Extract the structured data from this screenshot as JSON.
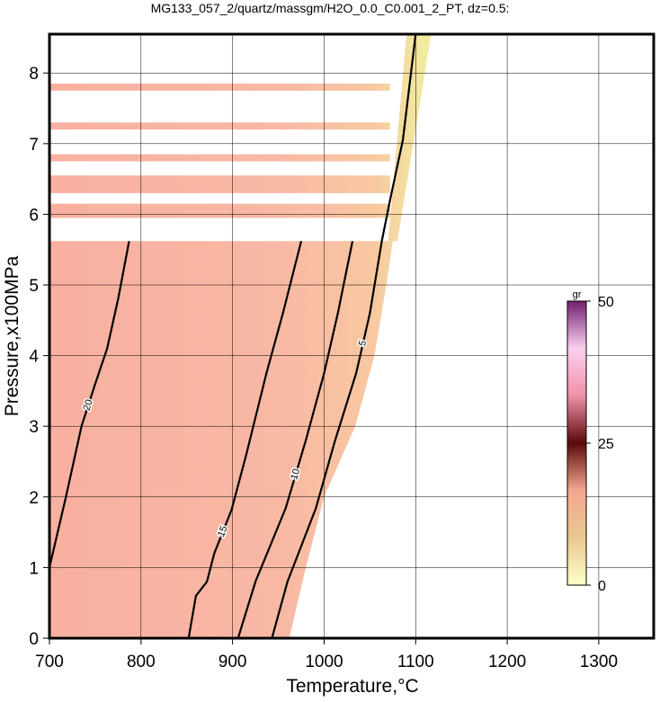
{
  "chart_data": {
    "type": "contour",
    "title": "MG133_057_2/quartz/massgm/H2O_0.0_C0.001_2_PT, dz=0.5:",
    "x_label": "Temperature,°C",
    "y_label": "Pressure,x100MPa",
    "xlim": [
      700,
      1360
    ],
    "ylim": [
      0,
      8.55
    ],
    "xticks": [
      700,
      800,
      900,
      1000,
      1100,
      1200,
      1300
    ],
    "yticks": [
      0,
      1,
      2,
      3,
      4,
      5,
      6,
      7,
      8
    ],
    "grid": true,
    "field_polygons": [
      {
        "x": [
          700,
          962,
          980,
          1000,
          1034,
          1055,
          1068,
          1075,
          700
        ],
        "y": [
          0,
          0,
          1,
          2,
          3,
          4,
          5,
          5.62,
          5.62
        ]
      },
      {
        "x": [
          1070,
          1080,
          1117,
          1090
        ],
        "y": [
          5.62,
          5.62,
          8.55,
          8.55
        ]
      },
      {
        "x": [
          700,
          1072,
          1072,
          700
        ],
        "y": [
          5.95,
          5.95,
          6.15,
          6.15
        ]
      },
      {
        "x": [
          700,
          1072,
          1072,
          700
        ],
        "y": [
          6.3,
          6.3,
          6.55,
          6.55
        ]
      },
      {
        "x": [
          700,
          1072,
          1072,
          700
        ],
        "y": [
          6.75,
          6.75,
          6.85,
          6.85
        ]
      },
      {
        "x": [
          700,
          1072,
          1072,
          700
        ],
        "y": [
          7.2,
          7.2,
          7.3,
          7.3
        ]
      },
      {
        "x": [
          700,
          1072,
          1072,
          700
        ],
        "y": [
          7.75,
          7.75,
          7.85,
          7.85
        ]
      }
    ],
    "contours": [
      {
        "level": 20,
        "x": [
          700,
          718,
          735,
          750,
          763,
          775,
          787
        ],
        "y": [
          1,
          2,
          3,
          3.6,
          4.1,
          4.8,
          5.62
        ]
      },
      {
        "level": 15,
        "x": [
          852,
          860,
          872,
          880,
          899,
          915,
          937,
          955,
          975
        ],
        "y": [
          0,
          0.6,
          0.8,
          1.2,
          1.82,
          2.6,
          3.75,
          4.6,
          5.62
        ]
      },
      {
        "level": 10,
        "x": [
          906,
          925,
          958,
          980,
          1000,
          1015,
          1031
        ],
        "y": [
          0,
          0.8,
          1.84,
          2.8,
          3.75,
          4.6,
          5.62
        ]
      },
      {
        "level": 5,
        "x": [
          943,
          960,
          991,
          1012,
          1035,
          1050,
          1063,
          1072,
          1086,
          1093,
          1100
        ],
        "y": [
          0,
          0.8,
          1.84,
          2.8,
          3.75,
          4.6,
          5.62,
          6.2,
          7.05,
          7.8,
          8.55
        ]
      }
    ],
    "colorbar": {
      "label": "gr",
      "clim": [
        0,
        50
      ],
      "ticks": [
        0,
        25,
        50
      ],
      "colors": [
        "#ffffc8",
        "#e8c890",
        "#f4a890",
        "#5a0a0a",
        "#f090a8",
        "#fbd0f0",
        "#702070"
      ]
    }
  }
}
